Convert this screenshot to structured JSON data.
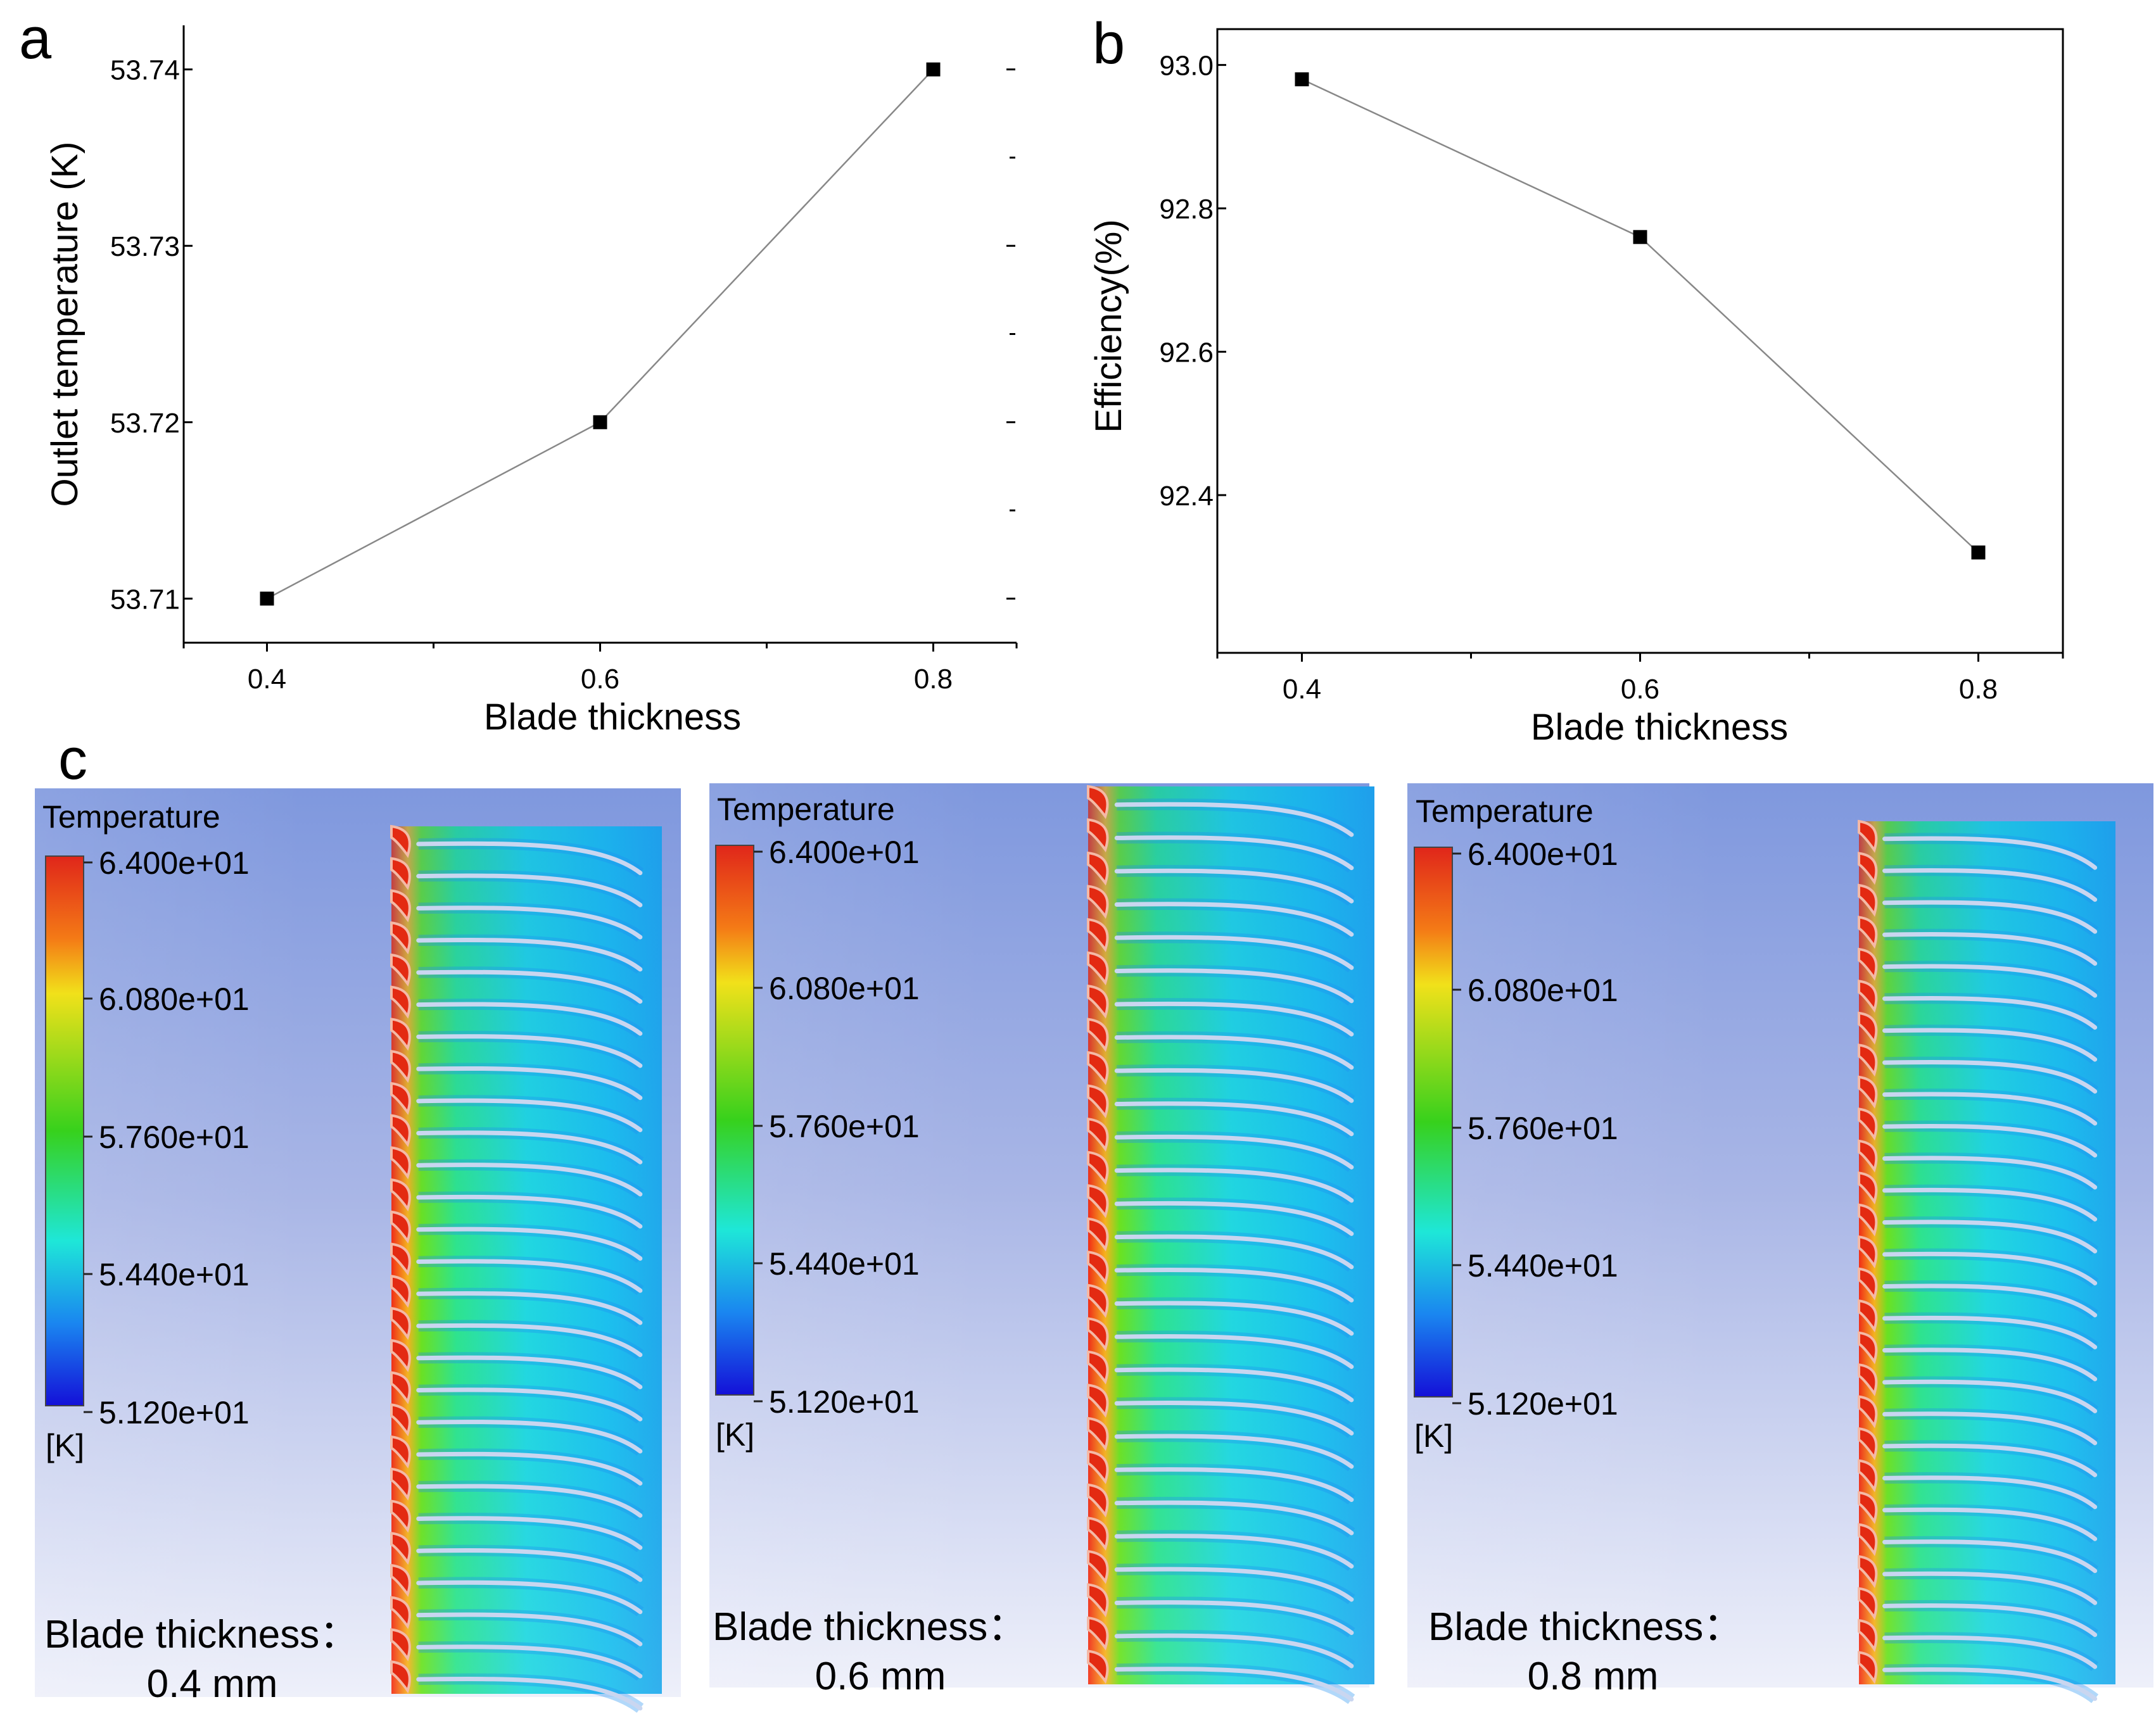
{
  "panel_labels": {
    "a": "a",
    "b": "b",
    "c": "c"
  },
  "chart_data": [
    {
      "type": "line",
      "panel": "a",
      "xlabel": "Blade thickness",
      "ylabel": "Outlet temperature (K)",
      "x": [
        0.4,
        0.6,
        0.8
      ],
      "y": [
        53.71,
        53.72,
        53.74
      ],
      "xticks": [
        "0.4",
        "0.6",
        "0.8"
      ],
      "yticks": [
        "53.71",
        "53.72",
        "53.73",
        "53.74"
      ],
      "xlim": [
        0.35,
        0.85
      ],
      "ylim": [
        53.7075,
        53.7425
      ],
      "marker": "square",
      "line_color": "#888888"
    },
    {
      "type": "line",
      "panel": "b",
      "xlabel": "Blade thickness",
      "ylabel": "Efficiency(%)",
      "x": [
        0.4,
        0.6,
        0.8
      ],
      "y": [
        92.98,
        92.76,
        92.32
      ],
      "xticks": [
        "0.4",
        "0.6",
        "0.8"
      ],
      "yticks": [
        "92.4",
        "92.6",
        "92.8",
        "93.0"
      ],
      "xlim": [
        0.35,
        0.85
      ],
      "ylim": [
        92.18,
        93.05
      ],
      "marker": "square",
      "line_color": "#888888"
    }
  ],
  "contours": [
    {
      "name": "contour-0-4",
      "legend_title": "Temperature",
      "legend_values": [
        "6.400e+01",
        "6.080e+01",
        "5.760e+01",
        "5.440e+01",
        "5.120e+01"
      ],
      "unit": "[K]",
      "caption_line1": "Blade  thickness：",
      "caption_line2": "0.4 mm"
    },
    {
      "name": "contour-0-6",
      "legend_title": "Temperature",
      "legend_values": [
        "6.400e+01",
        "6.080e+01",
        "5.760e+01",
        "5.440e+01",
        "5.120e+01"
      ],
      "unit": "[K]",
      "caption_line1": "Blade  thickness：",
      "caption_line2": "0.6 mm"
    },
    {
      "name": "contour-0-8",
      "legend_title": "Temperature",
      "legend_values": [
        "6.400e+01",
        "6.080e+01",
        "5.760e+01",
        "5.440e+01",
        "5.120e+01"
      ],
      "unit": "[K]",
      "caption_line1": "Blade  thickness：",
      "caption_line2": "0.8 mm"
    }
  ],
  "colors": {
    "rainbow": [
      "#e0261a",
      "#f47a16",
      "#f1e11a",
      "#37d11c",
      "#1ee7d8",
      "#1a86f0",
      "#1410d8"
    ],
    "bg_top": "#7f98de",
    "bg_bottom": "#eef0fa"
  }
}
